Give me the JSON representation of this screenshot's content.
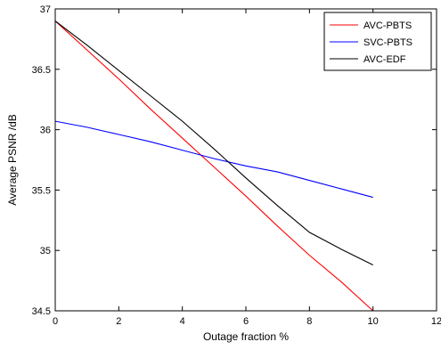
{
  "chart_data": {
    "type": "line",
    "title": "",
    "xlabel": "Outage fraction %",
    "ylabel": "Average PSNR /dB",
    "xlim": [
      0,
      12
    ],
    "ylim": [
      34.5,
      37
    ],
    "xticks": [
      0,
      2,
      4,
      6,
      8,
      10,
      12
    ],
    "yticks": [
      34.5,
      35,
      35.5,
      36,
      36.5,
      37
    ],
    "xtick_labels": [
      "0",
      "2",
      "4",
      "6",
      "8",
      "10",
      "12"
    ],
    "ytick_labels": [
      "34.5",
      "35",
      "35.5",
      "36",
      "36.5",
      "37"
    ],
    "grid": false,
    "legend_position": "top-right",
    "series": [
      {
        "name": "AVC-PBTS",
        "color": "#ff0000",
        "x": [
          0,
          1,
          2,
          3,
          4,
          5,
          6,
          7,
          8,
          9,
          10
        ],
        "y": [
          36.9,
          36.66,
          36.42,
          36.17,
          35.93,
          35.69,
          35.45,
          35.2,
          34.96,
          34.74,
          34.5
        ]
      },
      {
        "name": "SVC-PBTS",
        "color": "#0000ff",
        "x": [
          0,
          1,
          2,
          3,
          4,
          5,
          6,
          7,
          8,
          9,
          10
        ],
        "y": [
          36.07,
          36.02,
          35.96,
          35.9,
          35.83,
          35.76,
          35.7,
          35.65,
          35.58,
          35.51,
          35.44
        ]
      },
      {
        "name": "AVC-EDF",
        "color": "#000000",
        "x": [
          0,
          1,
          2,
          3,
          4,
          5,
          6,
          7,
          8,
          9,
          10
        ],
        "y": [
          36.9,
          36.7,
          36.49,
          36.28,
          36.07,
          35.84,
          35.6,
          35.37,
          35.15,
          35.01,
          34.88
        ]
      }
    ]
  }
}
